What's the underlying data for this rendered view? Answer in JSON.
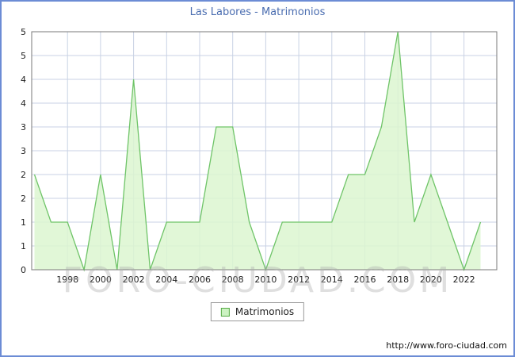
{
  "title": "Las Labores - Matrimonios",
  "watermark": "FORO-CIUDAD.COM",
  "legend": {
    "label": "Matrimonios"
  },
  "footer": {
    "url": "http://www.foro-ciudad.com"
  },
  "colors": {
    "frame_border": "#6c8cd5",
    "title_text": "#4a6db0",
    "grid": "#c9d2e4",
    "plot_border": "#7a7a7a",
    "area_fill": "#dcf6d0",
    "area_line": "#6fc468",
    "tick_text": "#222222"
  },
  "chart_data": {
    "type": "area",
    "title": "Las Labores - Matrimonios",
    "series_name": "Matrimonios",
    "x": [
      1996,
      1997,
      1998,
      1999,
      2000,
      2001,
      2002,
      2003,
      2004,
      2005,
      2006,
      2007,
      2008,
      2009,
      2010,
      2011,
      2012,
      2013,
      2014,
      2015,
      2016,
      2017,
      2018,
      2019,
      2020,
      2021,
      2022,
      2023
    ],
    "values": [
      2,
      1,
      1,
      0,
      2,
      0,
      4,
      0,
      1,
      1,
      1,
      3,
      3,
      1,
      0,
      1,
      1,
      1,
      1,
      2,
      2,
      3,
      5,
      1,
      2,
      1,
      0,
      1
    ],
    "ylim": [
      0,
      5
    ],
    "ytick_step": 0.5,
    "ytick_labels": [
      "5",
      "5",
      "4",
      "4",
      "3",
      "3",
      "2",
      "2",
      "1",
      "1",
      "0"
    ],
    "xtick_labels": [
      "1998",
      "2000",
      "2002",
      "2004",
      "2006",
      "2008",
      "2010",
      "2012",
      "2014",
      "2016",
      "2018",
      "2020",
      "2022"
    ],
    "grid": true,
    "legend_position": "bottom-center"
  }
}
